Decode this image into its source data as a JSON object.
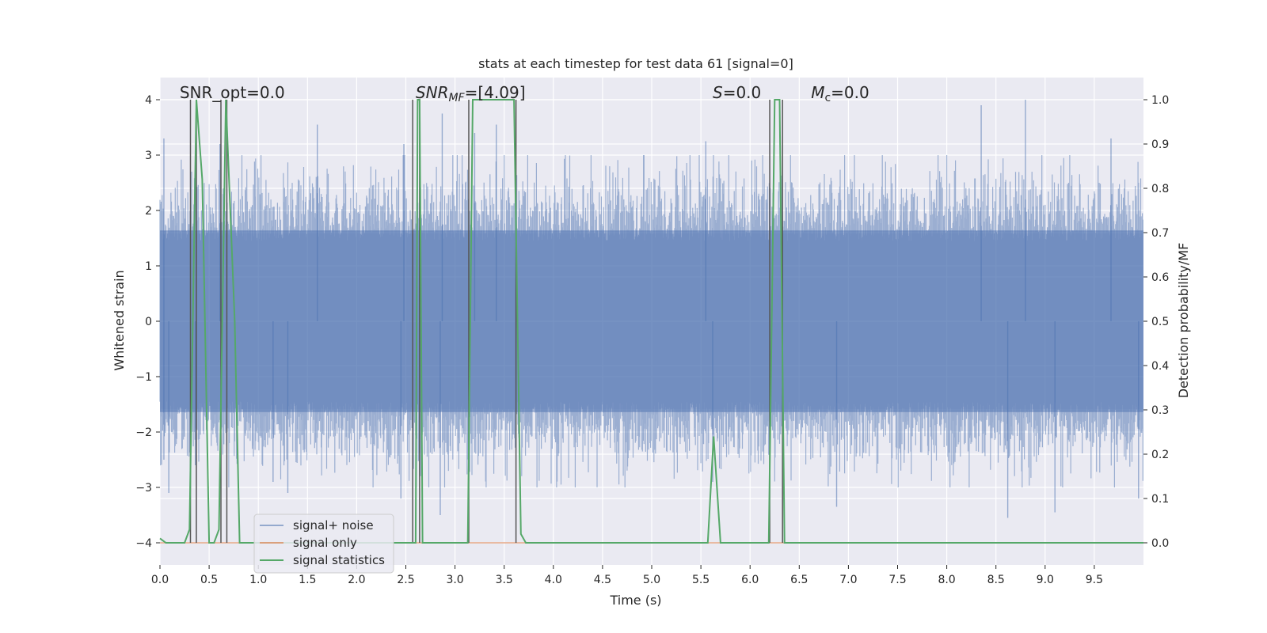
{
  "chart_data": {
    "type": "line",
    "title": "stats at each timestep for test data 61 [signal=0]",
    "xlabel": "Time (s)",
    "ylabel": "Whitened strain",
    "ylabel_right": "Detection probability/MF",
    "xlim": [
      0.0,
      10.0
    ],
    "ylim": [
      -4.4,
      4.4
    ],
    "ylim_right": [
      -0.05,
      1.05
    ],
    "x_ticks": [
      0.0,
      0.5,
      1.0,
      1.5,
      2.0,
      2.5,
      3.0,
      3.5,
      4.0,
      4.5,
      5.0,
      5.5,
      6.0,
      6.5,
      7.0,
      7.5,
      8.0,
      8.5,
      9.0,
      9.5
    ],
    "x_tick_labels": [
      "0.0",
      "0.5",
      "1.0",
      "1.5",
      "2.0",
      "2.5",
      "3.0",
      "3.5",
      "4.0",
      "4.5",
      "5.0",
      "5.5",
      "6.0",
      "6.5",
      "7.0",
      "7.5",
      "8.0",
      "8.5",
      "9.0",
      "9.5"
    ],
    "y_ticks": [
      -4,
      -3,
      -2,
      -1,
      0,
      1,
      2,
      3,
      4
    ],
    "y_tick_labels": [
      "−4",
      "−3",
      "−2",
      "−1",
      "0",
      "1",
      "2",
      "3",
      "4"
    ],
    "y_ticks_right": [
      0.0,
      0.1,
      0.2,
      0.3,
      0.4,
      0.5,
      0.6,
      0.7,
      0.8,
      0.9,
      1.0
    ],
    "y_tick_labels_right": [
      "0.0",
      "0.1",
      "0.2",
      "0.3",
      "0.4",
      "0.5",
      "0.6",
      "0.7",
      "0.8",
      "0.9",
      "1.0"
    ],
    "grid": true,
    "legend_placement": "lower-left",
    "annotations": [
      {
        "key": "snr_opt",
        "prefix": "SNR_opt=0.0",
        "sub": "",
        "suffix": "",
        "x": 0.2
      },
      {
        "key": "snr_mf",
        "prefix": "SNR",
        "sub": "MF",
        "suffix": "=[4.09]",
        "x": 2.6
      },
      {
        "key": "s",
        "prefix": "S",
        "sub": "",
        "suffix": "=0.0",
        "x": 5.62
      },
      {
        "key": "mc",
        "prefix": "M",
        "sub": "c",
        "suffix": "=0.0",
        "x": 6.62
      }
    ],
    "series": [
      {
        "name": "signal+ noise",
        "axis": "left",
        "color": "#4c72b0",
        "style": "dense noise trace",
        "sample_points": 1800,
        "envelope_typical": [
          -2.0,
          2.0
        ],
        "peaks": [
          {
            "x": 0.04,
            "y": 3.3
          },
          {
            "x": 0.04,
            "y": -2.5
          },
          {
            "x": 0.09,
            "y": -3.1
          },
          {
            "x": 0.61,
            "y": 3.2
          },
          {
            "x": 0.36,
            "y": -2.6
          },
          {
            "x": 1.15,
            "y": -2.9
          },
          {
            "x": 1.3,
            "y": -3.1
          },
          {
            "x": 1.6,
            "y": 3.55
          },
          {
            "x": 2.45,
            "y": -3.2
          },
          {
            "x": 2.48,
            "y": 3.2
          },
          {
            "x": 2.85,
            "y": -3.5
          },
          {
            "x": 2.87,
            "y": 3.75
          },
          {
            "x": 3.2,
            "y": 3.4
          },
          {
            "x": 3.42,
            "y": 3.55
          },
          {
            "x": 5.55,
            "y": 3.25
          },
          {
            "x": 5.62,
            "y": -2.9
          },
          {
            "x": 6.88,
            "y": -3.35
          },
          {
            "x": 8.35,
            "y": 3.9
          },
          {
            "x": 8.62,
            "y": -3.55
          },
          {
            "x": 8.8,
            "y": 4.0
          },
          {
            "x": 9.1,
            "y": -3.45
          },
          {
            "x": 9.67,
            "y": 3.3
          },
          {
            "x": 9.95,
            "y": -3.2
          }
        ]
      },
      {
        "name": "signal only",
        "axis": "left",
        "color": "#dd8452",
        "points": [
          [
            0.0,
            -4.0
          ],
          [
            10.0,
            -4.0
          ]
        ]
      },
      {
        "name": "signal statistics",
        "axis": "right",
        "color": "#55a868",
        "points": [
          [
            0.0,
            0.01
          ],
          [
            0.06,
            0.0
          ],
          [
            0.25,
            0.0
          ],
          [
            0.3,
            0.03
          ],
          [
            0.37,
            1.0
          ],
          [
            0.43,
            0.82
          ],
          [
            0.5,
            0.0
          ],
          [
            0.55,
            0.0
          ],
          [
            0.6,
            0.03
          ],
          [
            0.67,
            1.0
          ],
          [
            0.76,
            0.5
          ],
          [
            0.81,
            0.0
          ],
          [
            2.56,
            0.0
          ],
          [
            2.6,
            0.0
          ],
          [
            2.62,
            1.0
          ],
          [
            2.64,
            1.0
          ],
          [
            2.67,
            0.0
          ],
          [
            3.13,
            0.0
          ],
          [
            3.18,
            1.0
          ],
          [
            3.6,
            1.0
          ],
          [
            3.67,
            0.02
          ],
          [
            3.72,
            0.0
          ],
          [
            5.57,
            0.0
          ],
          [
            5.63,
            0.24
          ],
          [
            5.7,
            0.0
          ],
          [
            6.19,
            0.0
          ],
          [
            6.25,
            1.0
          ],
          [
            6.3,
            1.0
          ],
          [
            6.35,
            0.0
          ],
          [
            10.0,
            0.0
          ]
        ]
      }
    ],
    "vertical_markers": [
      0.31,
      0.37,
      0.62,
      0.68,
      2.57,
      2.64,
      3.14,
      3.62,
      6.2,
      6.33
    ]
  }
}
